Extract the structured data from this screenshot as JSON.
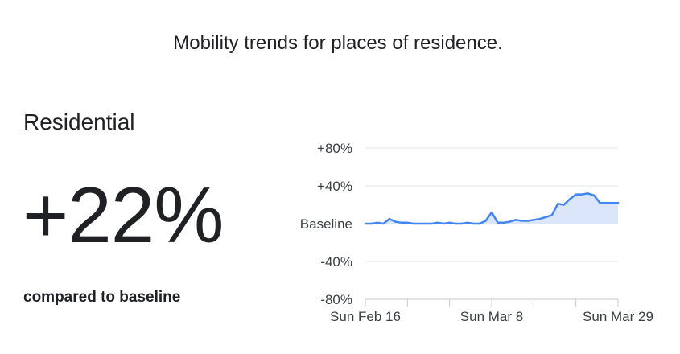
{
  "page": {
    "heading": "Mobility trends for places of residence.",
    "category": "Residential",
    "change_value": "+22%",
    "change_caption": "compared to baseline"
  },
  "colors": {
    "line": "#4285f4",
    "fill": "#dbe6fb",
    "grid": "#e4e4e4",
    "text": "#202124"
  },
  "chart_data": {
    "type": "area",
    "title": "",
    "xlabel": "",
    "ylabel": "",
    "ylim": [
      -80,
      80
    ],
    "y_ticks": [
      {
        "value": 80,
        "label": "+80%"
      },
      {
        "value": 40,
        "label": "+40%"
      },
      {
        "value": 0,
        "label": "Baseline"
      },
      {
        "value": -40,
        "label": "-40%"
      },
      {
        "value": -80,
        "label": "-80%"
      }
    ],
    "x_ticks": [
      {
        "value": "2020-02-16",
        "label": "Sun Feb 16"
      },
      {
        "value": "2020-03-08",
        "label": "Sun Mar 8"
      },
      {
        "value": "2020-03-29",
        "label": "Sun Mar 29"
      }
    ],
    "x_minor_ticks": [
      "2020-02-23",
      "2020-03-01",
      "2020-03-15",
      "2020-03-22"
    ],
    "x_range": [
      "2020-02-16",
      "2020-03-29"
    ],
    "grid": true,
    "series": [
      {
        "x": [
          "2020-02-16",
          "2020-02-17",
          "2020-02-18",
          "2020-02-19",
          "2020-02-20",
          "2020-02-21",
          "2020-02-22",
          "2020-02-23",
          "2020-02-24",
          "2020-02-25",
          "2020-02-26",
          "2020-02-27",
          "2020-02-28",
          "2020-02-29",
          "2020-03-01",
          "2020-03-02",
          "2020-03-03",
          "2020-03-04",
          "2020-03-05",
          "2020-03-06",
          "2020-03-07",
          "2020-03-08",
          "2020-03-09",
          "2020-03-10",
          "2020-03-11",
          "2020-03-12",
          "2020-03-13",
          "2020-03-14",
          "2020-03-15",
          "2020-03-16",
          "2020-03-17",
          "2020-03-18",
          "2020-03-19",
          "2020-03-20",
          "2020-03-21",
          "2020-03-22",
          "2020-03-23",
          "2020-03-24",
          "2020-03-25",
          "2020-03-26",
          "2020-03-27",
          "2020-03-28",
          "2020-03-29"
        ],
        "values": [
          0,
          0,
          1,
          0,
          5,
          2,
          1,
          1,
          0,
          0,
          0,
          0,
          1,
          0,
          1,
          0,
          0,
          1,
          0,
          0,
          3,
          12,
          1,
          1,
          2,
          4,
          3,
          3,
          4,
          5,
          7,
          9,
          21,
          20,
          26,
          31,
          31,
          32,
          30,
          22,
          22,
          22,
          22
        ]
      }
    ]
  }
}
